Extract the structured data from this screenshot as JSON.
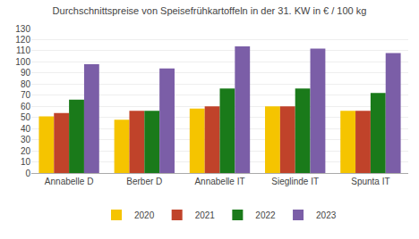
{
  "chart_data": {
    "type": "bar",
    "title": "Durchschnittspreise von Speisefrühkartoffeln in der 31. KW in € / 100 kg",
    "categories": [
      "Annabelle D",
      "Berber D",
      "Annabelle IT",
      "Sieglinde IT",
      "Spunta IT"
    ],
    "series": [
      {
        "name": "2020",
        "color": "#F5C400",
        "values": [
          51,
          48,
          58,
          60,
          56
        ]
      },
      {
        "name": "2021",
        "color": "#C0432A",
        "values": [
          54,
          56,
          60,
          60,
          56
        ]
      },
      {
        "name": "2022",
        "color": "#1A7A1A",
        "values": [
          66,
          56,
          76,
          76,
          72
        ]
      },
      {
        "name": "2023",
        "color": "#7B5EA7",
        "values": [
          98,
          94,
          114,
          112,
          108
        ]
      }
    ],
    "ylim": [
      0,
      130
    ],
    "yticks": [
      0,
      10,
      20,
      30,
      40,
      50,
      60,
      70,
      80,
      90,
      100,
      110,
      120,
      130
    ],
    "grid": true,
    "legend": "bottom"
  }
}
